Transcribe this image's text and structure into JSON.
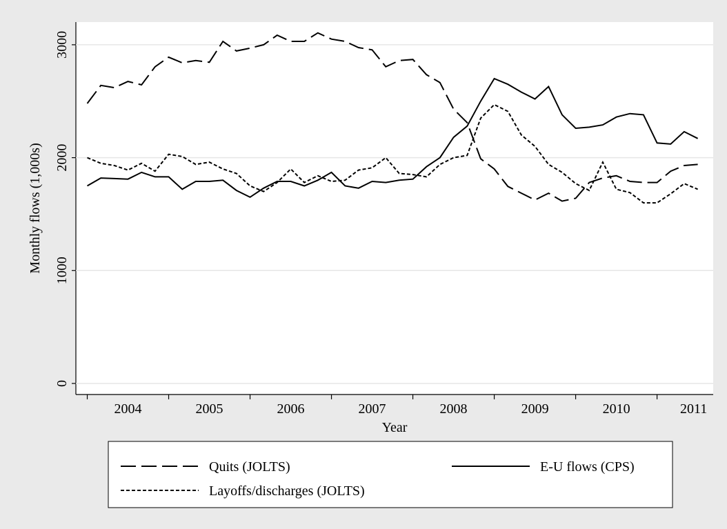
{
  "chart_data": {
    "type": "line",
    "x_label": "Year",
    "y_label": "Monthly flows (1,000s)",
    "x": [
      2004,
      2004.167,
      2004.333,
      2004.5,
      2004.667,
      2004.833,
      2005,
      2005.167,
      2005.333,
      2005.5,
      2005.667,
      2005.833,
      2006,
      2006.167,
      2006.333,
      2006.5,
      2006.667,
      2006.833,
      2007,
      2007.167,
      2007.333,
      2007.5,
      2007.667,
      2007.833,
      2008,
      2008.167,
      2008.333,
      2008.5,
      2008.667,
      2008.833,
      2009,
      2009.167,
      2009.333,
      2009.5,
      2009.667,
      2009.833,
      2010,
      2010.167,
      2010.333,
      2010.5,
      2010.667,
      2010.833,
      2011,
      2011.167,
      2011.333,
      2011.5
    ],
    "series": [
      {
        "name": "Quits (JOLTS)",
        "color": "#000000",
        "dash": "22 8",
        "values": [
          2480,
          2640,
          2620,
          2675,
          2645,
          2805,
          2890,
          2840,
          2860,
          2845,
          3030,
          2945,
          2970,
          3000,
          3085,
          3030,
          3030,
          3105,
          3050,
          3030,
          2975,
          2955,
          2805,
          2860,
          2870,
          2735,
          2665,
          2430,
          2310,
          1990,
          1900,
          1745,
          1685,
          1625,
          1685,
          1615,
          1640,
          1780,
          1820,
          1840,
          1790,
          1780,
          1780,
          1880,
          1930,
          1940
        ]
      },
      {
        "name": "E-U flows (CPS)",
        "color": "#000000",
        "dash": "none",
        "values": [
          1750,
          1820,
          1815,
          1810,
          1870,
          1830,
          1830,
          1720,
          1790,
          1790,
          1800,
          1710,
          1650,
          1730,
          1790,
          1790,
          1750,
          1800,
          1870,
          1750,
          1730,
          1790,
          1780,
          1800,
          1810,
          1920,
          2000,
          2180,
          2280,
          2500,
          2700,
          2650,
          2580,
          2520,
          2630,
          2380,
          2260,
          2270,
          2290,
          2360,
          2390,
          2380,
          2130,
          2120,
          2230,
          2170
        ]
      },
      {
        "name": "Layoffs/discharges (JOLTS)",
        "color": "#000000",
        "dash": "5 3",
        "values": [
          2000,
          1950,
          1930,
          1890,
          1950,
          1880,
          2030,
          2010,
          1940,
          1960,
          1900,
          1860,
          1750,
          1700,
          1780,
          1900,
          1780,
          1840,
          1790,
          1800,
          1890,
          1910,
          2000,
          1860,
          1850,
          1830,
          1940,
          2000,
          2020,
          2350,
          2470,
          2410,
          2200,
          2100,
          1940,
          1870,
          1770,
          1710,
          1960,
          1720,
          1690,
          1600,
          1600,
          1680,
          1770,
          1720
        ]
      }
    ],
    "xlim": [
      2003.86,
      2011.69
    ],
    "xticks": [
      {
        "value": 2004.5,
        "label": "2004"
      },
      {
        "value": 2005.5,
        "label": "2005"
      },
      {
        "value": 2006.5,
        "label": "2006"
      },
      {
        "value": 2007.5,
        "label": "2007"
      },
      {
        "value": 2008.5,
        "label": "2008"
      },
      {
        "value": 2009.5,
        "label": "2009"
      },
      {
        "value": 2010.5,
        "label": "2010"
      },
      {
        "value": 2011.45,
        "label": "2011"
      }
    ],
    "xticks_minor": [
      2004,
      2005,
      2006,
      2007,
      2008,
      2009,
      2010,
      2011
    ],
    "ylim": [
      -98,
      3201
    ],
    "yticks": [
      0,
      1000,
      2000,
      3000
    ],
    "grid": true
  }
}
